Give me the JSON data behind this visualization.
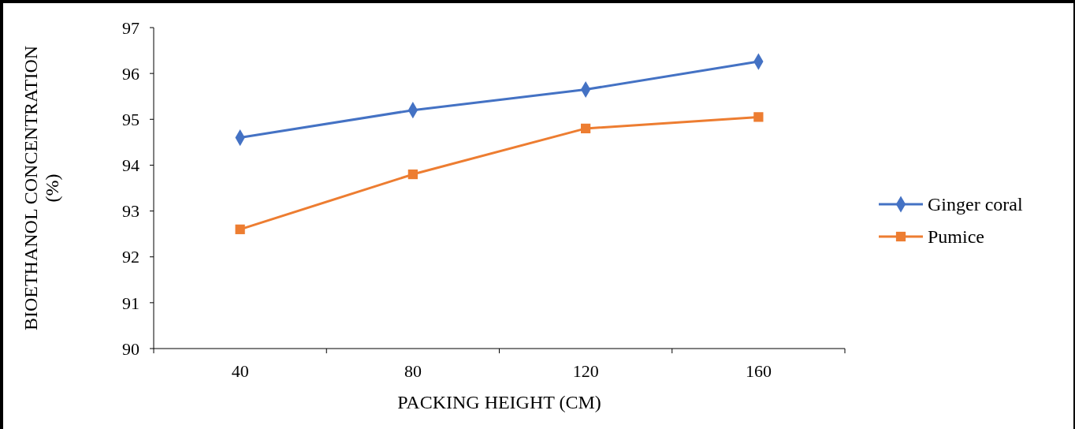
{
  "chart_data": {
    "type": "line",
    "xlabel": "PACKING HEIGHT (CM)",
    "ylabel": "BIOETHANOL CONCENTRATION (%)",
    "categories": [
      "40",
      "80",
      "120",
      "160"
    ],
    "ylim": [
      90,
      97
    ],
    "yticks": [
      90,
      91,
      92,
      93,
      94,
      95,
      96,
      97
    ],
    "grid": false,
    "legend": "right",
    "line_style": "solid",
    "series": [
      {
        "name": "Ginger coral",
        "color": "#4472c4",
        "marker": "diamond",
        "values": [
          94.6,
          95.2,
          95.65,
          96.26
        ]
      },
      {
        "name": "Pumice",
        "color": "#ed7d31",
        "marker": "square",
        "values": [
          92.6,
          93.8,
          94.8,
          95.05
        ]
      }
    ]
  }
}
